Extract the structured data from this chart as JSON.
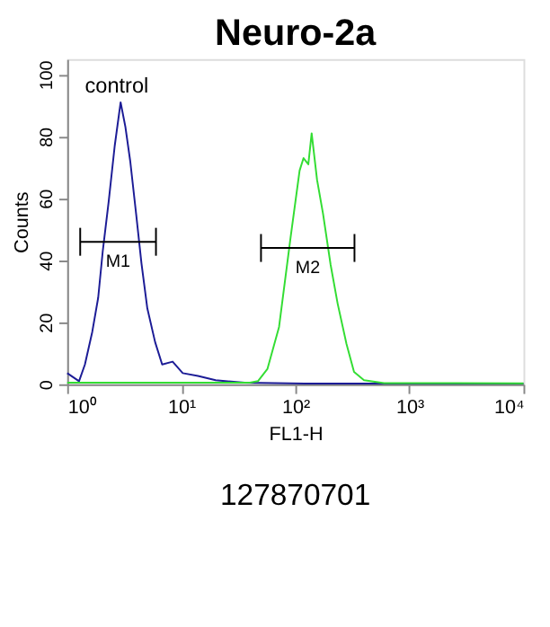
{
  "chart_data": {
    "type": "line",
    "title": "Neuro-2a",
    "xlabel": "FL1-H",
    "ylabel": "Counts",
    "log": "x",
    "grid": false,
    "marker": "none",
    "xlim": [
      1,
      10000
    ],
    "ylim": [
      0,
      105
    ],
    "xticks": [
      {
        "value": 1,
        "label": "10⁰"
      },
      {
        "value": 10,
        "label": "10¹"
      },
      {
        "value": 100,
        "label": "10²"
      },
      {
        "value": 1000,
        "label": "10³"
      },
      {
        "value": 10000,
        "label": "10⁴"
      }
    ],
    "yticks": [
      0,
      20,
      40,
      60,
      80,
      100
    ],
    "annotations": [
      "control",
      "127870701"
    ],
    "series": [
      {
        "type": "line",
        "color": "#1c1c96",
        "x": [
          1,
          1.27,
          1.43,
          1.66,
          1.87,
          2.05,
          2.31,
          2.61,
          2.94,
          3.24,
          3.57,
          4.02,
          4.48,
          5.04,
          5.9,
          6.8,
          8.4,
          10.3,
          14,
          20,
          36,
          121,
          1000,
          10000
        ],
        "values": [
          3.6,
          1,
          6.4,
          17,
          28,
          43,
          59,
          77,
          91,
          83,
          72,
          55,
          39,
          24.5,
          13.6,
          6.4,
          7.3,
          3.6,
          2.7,
          1.3,
          0.5,
          0.2,
          0.2,
          0.2
        ]
      },
      {
        "type": "line",
        "color": "#33dd33",
        "x": [
          1,
          10,
          40,
          47,
          57,
          72,
          91,
          109,
          118,
          130,
          139,
          155,
          175,
          204,
          235,
          281,
          327,
          400,
          600,
          10000
        ],
        "values": [
          0.5,
          0.5,
          0.5,
          1,
          5,
          18.5,
          47.6,
          69,
          73,
          71,
          81,
          66,
          55,
          38.5,
          26,
          13,
          4,
          1.3,
          0.4,
          0.3
        ]
      },
      {
        "type": "line",
        "name": "M1",
        "color": "#000000",
        "x": [
          1.3,
          6
        ],
        "values": [
          46,
          46
        ],
        "errors": [
          4.5,
          4.5
        ]
      },
      {
        "type": "line",
        "name": "M2",
        "color": "#000000",
        "x": [
          50,
          330
        ],
        "values": [
          44,
          44
        ],
        "errors": [
          4.5,
          4.5
        ]
      }
    ]
  }
}
